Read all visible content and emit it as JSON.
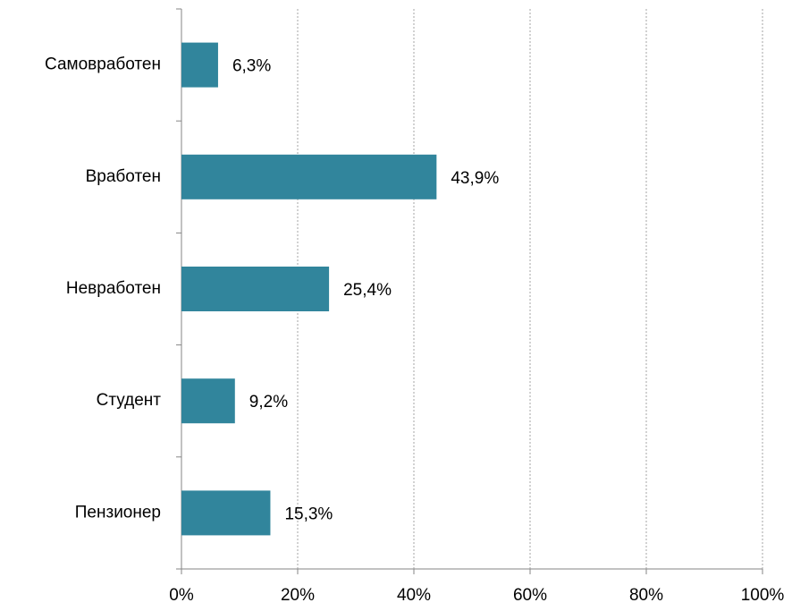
{
  "chart_data": {
    "type": "bar",
    "orientation": "horizontal",
    "categories": [
      "Самовработен",
      "Вработен",
      "Невработен",
      "Студент",
      "Пензионер"
    ],
    "values": [
      6.3,
      43.9,
      25.4,
      9.2,
      15.3
    ],
    "value_labels": [
      "6,3%",
      "43,9%",
      "25,4%",
      "9,2%",
      "15,3%"
    ],
    "color": "#31859c",
    "xlim": [
      0,
      100
    ],
    "xticks": [
      {
        "value": 0,
        "label": "0%"
      },
      {
        "value": 20,
        "label": "20%"
      },
      {
        "value": 40,
        "label": "40%"
      },
      {
        "value": 60,
        "label": "60%"
      },
      {
        "value": 80,
        "label": "80%"
      },
      {
        "value": 100,
        "label": "100%"
      }
    ],
    "grid": true
  }
}
